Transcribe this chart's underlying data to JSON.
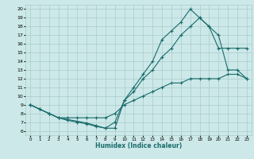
{
  "xlabel": "Humidex (Indice chaleur)",
  "background_color": "#cce8e8",
  "grid_color": "#aacccc",
  "line_color": "#1a6b6b",
  "xlim": [
    -0.5,
    23.5
  ],
  "ylim": [
    6,
    20
  ],
  "yticks": [
    6,
    7,
    8,
    9,
    10,
    11,
    12,
    13,
    14,
    15,
    16,
    17,
    18,
    19,
    20
  ],
  "xticks": [
    0,
    1,
    2,
    3,
    4,
    5,
    6,
    7,
    8,
    9,
    10,
    11,
    12,
    13,
    14,
    15,
    16,
    17,
    18,
    19,
    20,
    21,
    22,
    23
  ],
  "line1_x": [
    0,
    1,
    2,
    3,
    4,
    5,
    6,
    7,
    8,
    9,
    10,
    11,
    12,
    13,
    14,
    15,
    16,
    17,
    18,
    19,
    20,
    21,
    22,
    23
  ],
  "line1_y": [
    9.0,
    8.5,
    8.0,
    7.5,
    7.5,
    7.5,
    7.5,
    7.5,
    7.5,
    8.0,
    9.0,
    9.5,
    10.0,
    10.5,
    11.0,
    11.5,
    11.5,
    12.0,
    12.0,
    12.0,
    12.0,
    12.5,
    12.5,
    12.0
  ],
  "line2_x": [
    0,
    1,
    2,
    3,
    4,
    5,
    6,
    7,
    8,
    9,
    10,
    11,
    12,
    13,
    14,
    15,
    16,
    17,
    18,
    19,
    20,
    21,
    22,
    23
  ],
  "line2_y": [
    9.0,
    8.5,
    8.0,
    7.5,
    7.2,
    7.0,
    6.8,
    6.5,
    6.3,
    6.3,
    9.5,
    11.0,
    12.5,
    14.0,
    16.5,
    17.5,
    18.5,
    20.0,
    19.0,
    18.0,
    15.5,
    15.5,
    15.5,
    15.5
  ],
  "line3_x": [
    0,
    1,
    2,
    3,
    4,
    5,
    6,
    7,
    8,
    9,
    10,
    11,
    12,
    13,
    14,
    15,
    16,
    17,
    18,
    19,
    20,
    21,
    22,
    23
  ],
  "line3_y": [
    9.0,
    8.5,
    8.0,
    7.5,
    7.3,
    7.1,
    6.9,
    6.6,
    6.3,
    7.0,
    9.5,
    10.5,
    12.0,
    13.0,
    14.5,
    15.5,
    17.0,
    18.0,
    19.0,
    18.0,
    17.0,
    13.0,
    13.0,
    12.0
  ]
}
